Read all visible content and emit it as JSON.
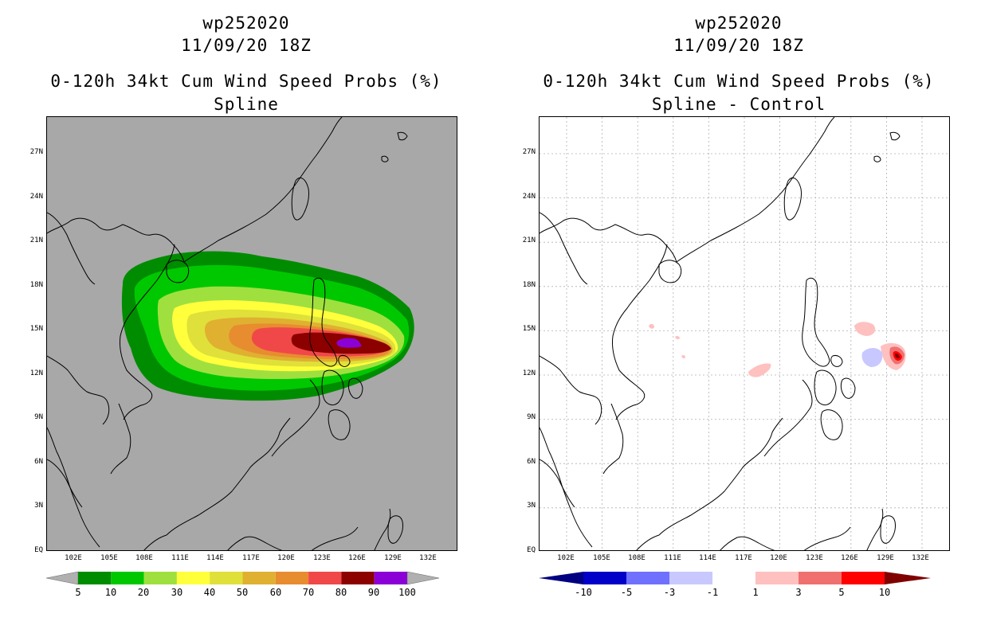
{
  "left": {
    "title_storm": "wp252020",
    "title_date": "11/09/20 18Z",
    "title_product": "0-120h 34kt Cum Wind Speed Probs (%)",
    "title_method": "Spline",
    "colorbar": {
      "labels": [
        "5",
        "10",
        "20",
        "30",
        "40",
        "50",
        "60",
        "70",
        "80",
        "90",
        "100"
      ],
      "colors": [
        "#008c00",
        "#00c800",
        "#9fe03f",
        "#ffff3c",
        "#e0e03a",
        "#e0b030",
        "#e88c30",
        "#f04848",
        "#8c0000",
        "#8c00d8"
      ]
    }
  },
  "right": {
    "title_storm": "wp252020",
    "title_date": "11/09/20 18Z",
    "title_product": "0-120h 34kt Cum Wind Speed Probs (%)",
    "title_method": "Spline - Control",
    "colorbar": {
      "labels": [
        "-10",
        "-5",
        "-3",
        "-1",
        "1",
        "3",
        "5",
        "10"
      ],
      "colors": [
        "#0000c8",
        "#7070ff",
        "#c8c8ff",
        "#ffffff",
        "#ffc0c0",
        "#f07070",
        "#ff0000"
      ],
      "end_low": "#000080",
      "end_high": "#800000"
    }
  },
  "axes": {
    "lat_labels": [
      "27N",
      "24N",
      "21N",
      "18N",
      "15N",
      "12N",
      "9N",
      "6N",
      "3N",
      "EQ"
    ],
    "lon_labels": [
      "102E",
      "105E",
      "108E",
      "111E",
      "114E",
      "117E",
      "120E",
      "123E",
      "126E",
      "129E",
      "132E"
    ]
  }
}
